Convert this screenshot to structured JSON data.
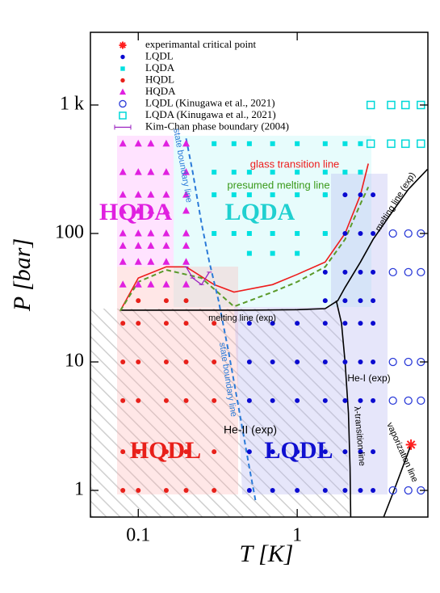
{
  "chart_data": {
    "type": "scatter",
    "x_label": "T   [K]",
    "y_label": "P   [bar]",
    "log_x": true,
    "log_y": true,
    "xlim": [
      0.05,
      6.64
    ],
    "ylim": [
      0.62,
      3680
    ],
    "xticks": [
      0.1,
      1
    ],
    "yticks": [
      1,
      10,
      100,
      {
        "value": 1000,
        "label": "1 k"
      }
    ],
    "series": [
      {
        "name": "experimantal critical point",
        "marker": "star",
        "color": "#ff2020",
        "x": [
          5.2
        ],
        "y": [
          2.27
        ]
      },
      {
        "name": "LQDL",
        "marker": "circle",
        "color": "#0a0ad0",
        "x": [
          0.5,
          0.7,
          1,
          1.5,
          2,
          2.5,
          3,
          0.5,
          0.7,
          1,
          1.5,
          2,
          2.5,
          3,
          0.5,
          0.7,
          1,
          1.5,
          2,
          2.5,
          3,
          0.5,
          0.7,
          1,
          1.5,
          2,
          2.5,
          3,
          0.5,
          0.7,
          1,
          1.5,
          2,
          2.5,
          3,
          1.5,
          2,
          2.5,
          3,
          1.5,
          2,
          2.5,
          3,
          1.5,
          2,
          2.5,
          3,
          1.5,
          2,
          2.5,
          3
        ],
        "y": [
          1,
          1,
          1,
          1,
          1,
          1,
          1,
          2,
          2,
          2,
          2,
          2,
          2,
          2,
          5,
          5,
          5,
          5,
          5,
          5,
          5,
          10,
          10,
          10,
          10,
          10,
          10,
          10,
          20,
          20,
          20,
          20,
          20,
          20,
          20,
          30,
          30,
          30,
          30,
          50,
          50,
          50,
          50,
          100,
          100,
          100,
          100,
          200,
          200,
          200,
          200
        ]
      },
      {
        "name": "LQDA",
        "marker": "square",
        "color": "#00e0e0",
        "x": [
          0.3,
          0.4,
          0.5,
          0.7,
          1,
          1.5,
          0.3,
          0.4,
          0.5,
          0.7,
          1,
          1.5,
          0.3,
          0.4,
          0.5,
          0.7,
          1,
          1.5,
          0.3,
          0.4,
          0.5,
          0.7,
          1,
          1.5,
          0.5,
          0.7,
          1,
          2,
          2.5,
          2,
          2.5
        ],
        "y": [
          100,
          100,
          100,
          100,
          100,
          100,
          200,
          200,
          200,
          200,
          200,
          200,
          300,
          300,
          300,
          300,
          300,
          300,
          500,
          500,
          500,
          500,
          500,
          500,
          70,
          70,
          70,
          300,
          300,
          500,
          500
        ]
      },
      {
        "name": "HQDL",
        "marker": "circle",
        "color": "#e8201a",
        "x": [
          0.08,
          0.1,
          0.15,
          0.2,
          0.3,
          0.08,
          0.1,
          0.15,
          0.2,
          0.3,
          0.08,
          0.1,
          0.15,
          0.2,
          0.3,
          0.08,
          0.1,
          0.15,
          0.2,
          0.3,
          0.08,
          0.1,
          0.15,
          0.2,
          0.3,
          0.1,
          0.15,
          0.2
        ],
        "y": [
          1,
          1,
          1,
          1,
          1,
          2,
          2,
          2,
          2,
          2,
          5,
          5,
          5,
          5,
          5,
          10,
          10,
          10,
          10,
          10,
          20,
          20,
          20,
          20,
          20,
          30,
          30,
          30
        ]
      },
      {
        "name": "HQDA",
        "marker": "triangle",
        "color": "#e020e0",
        "x": [
          0.08,
          0.1,
          0.12,
          0.15,
          0.2,
          0.08,
          0.1,
          0.12,
          0.15,
          0.2,
          0.08,
          0.1,
          0.12,
          0.15,
          0.2,
          0.08,
          0.1,
          0.12,
          0.15,
          0.2,
          0.08,
          0.1,
          0.12,
          0.15,
          0.2,
          0.08,
          0.1,
          0.12,
          0.15,
          0.2,
          0.08,
          0.1,
          0.12,
          0.15,
          0.2,
          0.08,
          0.1,
          0.12,
          0.15,
          0.2
        ],
        "y": [
          40,
          40,
          40,
          40,
          40,
          60,
          60,
          60,
          60,
          60,
          80,
          80,
          80,
          80,
          80,
          100,
          100,
          100,
          100,
          100,
          150,
          150,
          150,
          150,
          150,
          200,
          200,
          200,
          200,
          200,
          300,
          300,
          300,
          300,
          300,
          500,
          500,
          500,
          500,
          500
        ]
      },
      {
        "name": "LQDL (Kinugawa et al., 2021)",
        "marker": "open-circle",
        "color": "#2a3ad8",
        "x": [
          4,
          5,
          6,
          4,
          5,
          6,
          4,
          5,
          6,
          4,
          5,
          6,
          4,
          5,
          6
        ],
        "y": [
          1,
          1,
          1,
          5,
          5,
          5,
          10,
          10,
          10,
          50,
          50,
          50,
          100,
          100,
          100
        ]
      },
      {
        "name": "LQDA (Kinugawa et al., 2021)",
        "marker": "open-square",
        "color": "#00d8d8",
        "x": [
          2.9,
          3.9,
          4.8,
          6,
          2.9,
          3.9,
          4.8,
          6
        ],
        "y": [
          500,
          500,
          500,
          500,
          1000,
          1000,
          1000,
          1000
        ]
      },
      {
        "name": "Kim-Chan phase boundary (2004)",
        "marker": "line",
        "color": "#9a20c0",
        "x": [
          0.2,
          0.22,
          0.25,
          0.28
        ],
        "y": [
          55,
          45,
          40,
          50
        ]
      }
    ],
    "lines": [
      {
        "color": "#000000",
        "dash": false,
        "x": [
          0.077,
          0.5,
          1,
          1.5,
          1.8,
          2,
          2.5,
          3,
          4,
          5,
          6.6
        ],
        "y": [
          25.3,
          25.3,
          25.5,
          26,
          30,
          38,
          60,
          90,
          150,
          220,
          316
        ]
      },
      {
        "color": "#000000",
        "dash": false,
        "x": [
          1.76,
          1.9,
          2,
          2.1,
          2.15,
          2.17
        ],
        "y": [
          30,
          20,
          10,
          4,
          1.5,
          0.62
        ]
      },
      {
        "color": "#000000",
        "dash": false,
        "x": [
          5.2,
          4.5,
          4,
          3.5
        ],
        "y": [
          2.27,
          1.4,
          0.95,
          0.62
        ]
      },
      {
        "color": "#ee1c1c",
        "dash": false,
        "x": [
          0.077,
          0.1,
          0.15,
          0.2,
          0.3,
          0.4,
          0.7,
          1,
          1.5,
          2,
          2.5,
          2.8
        ],
        "y": [
          25,
          45,
          55,
          55,
          40,
          35,
          40,
          48,
          60,
          100,
          200,
          350
        ]
      },
      {
        "color": "#5a9a2a",
        "dash": true,
        "x": [
          0.077,
          0.1,
          0.15,
          0.25,
          0.4,
          0.7,
          1,
          1.5,
          2,
          2.5,
          2.8
        ],
        "y": [
          25,
          42,
          52,
          45,
          27,
          35,
          42,
          55,
          90,
          170,
          230
        ]
      },
      {
        "color": "#2a7ad8",
        "dash": true,
        "x": [
          0.2,
          0.22,
          0.25,
          0.28,
          0.32,
          0.37,
          0.42,
          0.5,
          0.55
        ],
        "y": [
          550,
          300,
          120,
          60,
          30,
          12,
          5,
          1.5,
          0.8
        ]
      }
    ],
    "annotations": [
      "HQDA",
      "LQDA",
      "HQDL",
      "LQDL",
      "glass transition line",
      "presumed melting line",
      "melting line (exp)",
      "melting line (exp)",
      "state boundary line",
      "state boundary line",
      "He-II (exp)",
      "He-I (exp)",
      "λ-transition line",
      "vaporization line"
    ]
  }
}
